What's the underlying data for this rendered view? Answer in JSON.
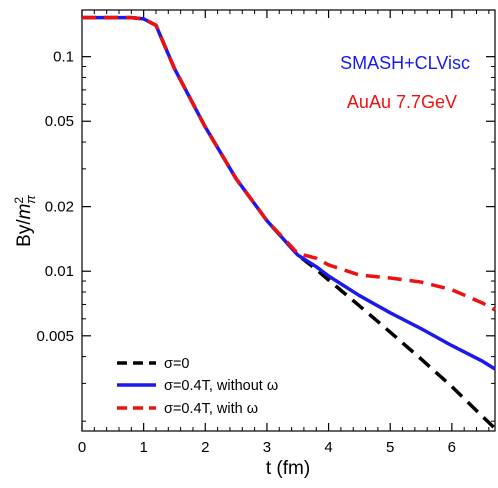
{
  "chart_data": {
    "type": "line",
    "title": "",
    "xlabel": "t (fm)",
    "ylabel": "By/m_π²",
    "xlim": [
      0,
      6.7
    ],
    "ylim": [
      0.0018,
      0.165
    ],
    "yscale": "log",
    "grid": false,
    "legend_position": "bottom-left",
    "x_ticks": [
      {
        "value": 0,
        "label": "0"
      },
      {
        "value": 1,
        "label": "1"
      },
      {
        "value": 2,
        "label": "2"
      },
      {
        "value": 3,
        "label": "3"
      },
      {
        "value": 4,
        "label": "4"
      },
      {
        "value": 5,
        "label": "5"
      },
      {
        "value": 6,
        "label": "6"
      }
    ],
    "y_ticks": [
      {
        "value": 0.005,
        "label": "0.005"
      },
      {
        "value": 0.01,
        "label": "0.01"
      },
      {
        "value": 0.02,
        "label": "0.02"
      },
      {
        "value": 0.05,
        "label": "0.05"
      },
      {
        "value": 0.1,
        "label": "0.1"
      }
    ],
    "annotations": [
      {
        "text": "SMASH+CLVisc",
        "color": "#1a1aee"
      },
      {
        "text": "AuAu 7.7GeV",
        "color": "#ee1111"
      }
    ],
    "series": [
      {
        "name": "σ=0",
        "color": "#000000",
        "style": "dashed",
        "x": [
          0,
          0.5,
          0.8,
          1.0,
          1.2,
          1.5,
          2.0,
          2.5,
          3.0,
          3.5,
          3.8,
          4.0,
          4.5,
          5.0,
          5.5,
          6.0,
          6.5,
          6.7
        ],
        "y": [
          0.152,
          0.152,
          0.152,
          0.15,
          0.14,
          0.088,
          0.047,
          0.027,
          0.0172,
          0.0119,
          0.0102,
          0.0091,
          0.0069,
          0.0052,
          0.0039,
          0.0029,
          0.0021,
          0.00185
        ]
      },
      {
        "name": "σ=0.4T, without ω",
        "color": "#1a1aee",
        "style": "solid",
        "x": [
          0,
          0.5,
          0.8,
          1.0,
          1.2,
          1.5,
          2.0,
          2.5,
          3.0,
          3.5,
          3.8,
          4.0,
          4.5,
          5.0,
          5.5,
          6.0,
          6.5,
          6.7
        ],
        "y": [
          0.152,
          0.152,
          0.152,
          0.15,
          0.14,
          0.088,
          0.047,
          0.027,
          0.0172,
          0.0119,
          0.0105,
          0.0095,
          0.0077,
          0.0064,
          0.0054,
          0.0045,
          0.0038,
          0.0035
        ]
      },
      {
        "name": "σ=0.4T, with ω",
        "color": "#ee1111",
        "style": "dashed",
        "x": [
          0,
          0.5,
          0.8,
          1.0,
          1.2,
          1.5,
          2.0,
          2.5,
          3.0,
          3.5,
          3.8,
          4.0,
          4.5,
          5.0,
          5.5,
          6.0,
          6.5,
          6.7
        ],
        "y": [
          0.152,
          0.152,
          0.152,
          0.15,
          0.14,
          0.088,
          0.047,
          0.027,
          0.0172,
          0.0121,
          0.0115,
          0.0107,
          0.0096,
          0.0093,
          0.0089,
          0.0082,
          0.0071,
          0.0066
        ]
      }
    ]
  }
}
